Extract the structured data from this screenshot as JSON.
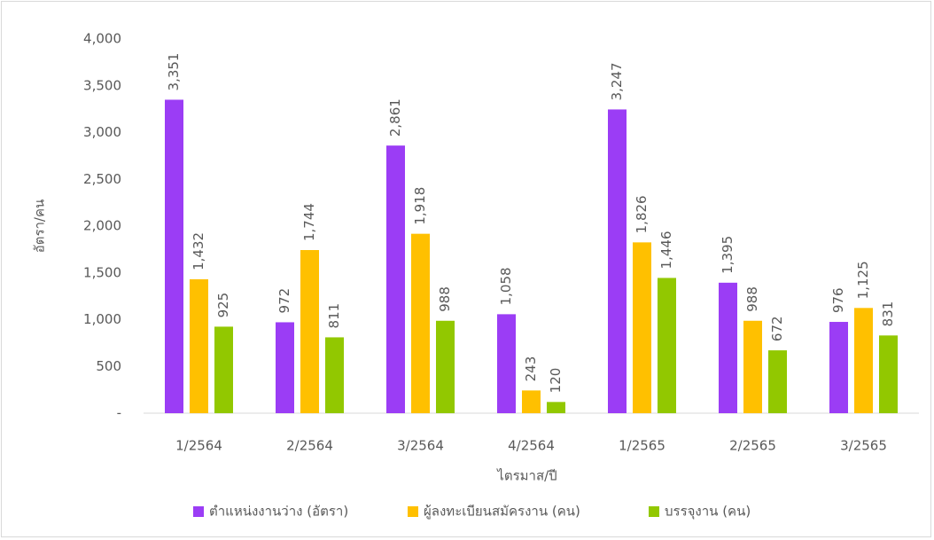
{
  "chart_data": {
    "type": "bar",
    "categories": [
      "1/2564",
      "2/2564",
      "3/2564",
      "4/2564",
      "1/2565",
      "2/2565",
      "3/2565"
    ],
    "series": [
      {
        "name": "ตำแหน่งงานว่าง (อัตรา)",
        "color": "#9b3df5",
        "values": [
          3351,
          972,
          2861,
          1058,
          3247,
          1395,
          976
        ],
        "value_labels": [
          "3,351",
          "972",
          "2,861",
          "1,058",
          "3,247",
          "1,395",
          "976"
        ]
      },
      {
        "name": "ผู้ลงทะเบียนสมัครงาน (คน)",
        "color": "#ffc000",
        "values": [
          1432,
          1744,
          1918,
          243,
          1826,
          988,
          1125
        ],
        "value_labels": [
          "1,432",
          "1,744",
          "1,918",
          "243",
          "1,826",
          "988",
          "1,125"
        ]
      },
      {
        "name": "บรรจุงาน (คน)",
        "color": "#92c800",
        "values": [
          925,
          811,
          988,
          120,
          1446,
          672,
          831
        ],
        "value_labels": [
          "925",
          "811",
          "988",
          "120",
          "1,446",
          "672",
          "831"
        ]
      }
    ],
    "x_label": "ไตรมาส/ปี",
    "y_label": "อัตรา/คน",
    "ylim": [
      0,
      4000
    ],
    "yticks": [
      {
        "value": 0,
        "label": "-"
      },
      500,
      {
        "value": 1000,
        "label": "1,000"
      },
      {
        "value": 1500,
        "label": "1,500"
      },
      {
        "value": 2000,
        "label": "2,000"
      },
      {
        "value": 2500,
        "label": "2,500"
      },
      {
        "value": 3000,
        "label": "3,000"
      },
      {
        "value": 3500,
        "label": "3,500"
      },
      {
        "value": 4000,
        "label": "4,000"
      }
    ],
    "grid": false,
    "legend": "bottom"
  }
}
